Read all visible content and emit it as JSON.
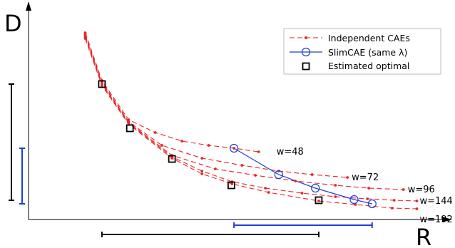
{
  "chart_data": {
    "type": "line",
    "title": "",
    "xlabel": "R",
    "ylabel": "D",
    "xlim": [
      0,
      620
    ],
    "ylim": [
      0,
      300
    ],
    "grid": false,
    "legend_position": "top-right",
    "legend": [
      {
        "label": "Independent CAEs",
        "style": "red-dashed-dot"
      },
      {
        "label": "SlimCAE (same λ)",
        "style": "blue-circle"
      },
      {
        "label": "Estimated optimal",
        "style": "black-square"
      }
    ],
    "series": [
      {
        "name": "w=48",
        "label": "w=48",
        "color": "#e8262a",
        "x": [
          85,
          110,
          150,
          190,
          230,
          270,
          308,
          345
        ],
        "y": [
          262,
          195,
          140,
          122,
          110,
          104,
          100,
          95
        ]
      },
      {
        "name": "w=72",
        "label": "w=72",
        "color": "#e8262a",
        "x": [
          85,
          110,
          150,
          200,
          260,
          320,
          375,
          425,
          478
        ],
        "y": [
          260,
          193,
          137,
          104,
          86,
          76,
          68,
          63,
          59
        ]
      },
      {
        "name": "w=96",
        "label": "w=96",
        "color": "#e8262a",
        "x": [
          85,
          110,
          150,
          215,
          280,
          340,
          400,
          460,
          510,
          562
        ],
        "y": [
          258,
          191,
          136,
          90,
          71,
          62,
          54,
          48,
          44,
          42
        ]
      },
      {
        "name": "w=144",
        "label": "w=144",
        "color": "#e8262a",
        "x": [
          85,
          110,
          150,
          215,
          260,
          305,
          355,
          410,
          460,
          508,
          548,
          582
        ],
        "y": [
          256,
          190,
          135,
          88,
          68,
          53,
          44,
          37,
          32,
          29,
          27,
          26
        ]
      },
      {
        "name": "w=192",
        "label": "w=192",
        "color": "#e8262a",
        "x": [
          85,
          110,
          150,
          215,
          260,
          305,
          360,
          435,
          490,
          545,
          582
        ],
        "y": [
          254,
          188,
          134,
          86,
          64,
          50,
          38,
          26,
          21,
          16,
          15
        ]
      },
      {
        "name": "SlimCAE (same λ)",
        "color": "#1f3fd6",
        "x": [
          308,
          375,
          430,
          488,
          515
        ],
        "y": [
          100,
          63,
          44,
          28,
          22
        ]
      }
    ],
    "estimated_optimal": {
      "x": [
        110,
        152,
        215,
        304,
        435
      ],
      "y": [
        190,
        128,
        85,
        48,
        27
      ]
    },
    "range_bars": {
      "vertical": [
        {
          "color": "#000000",
          "from": 27,
          "to": 190
        },
        {
          "color": "#1f3fd6",
          "from": 22,
          "to": 100
        }
      ],
      "horizontal": [
        {
          "color": "#000000",
          "from": 110,
          "to": 435
        },
        {
          "color": "#1f3fd6",
          "from": 308,
          "to": 515
        }
      ]
    }
  }
}
